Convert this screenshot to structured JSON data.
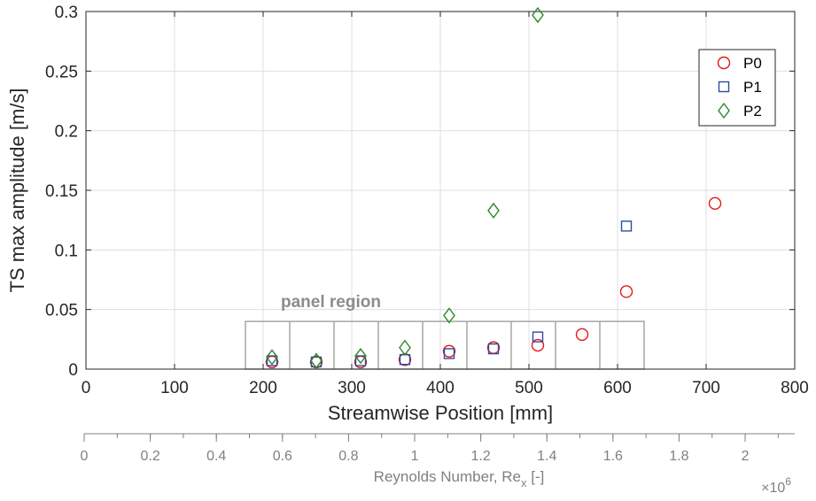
{
  "chart_data": {
    "type": "scatter",
    "xlabel": "Streamwise Position [mm]",
    "ylabel": "TS max amplitude [m/s]",
    "xlim": [
      0,
      800
    ],
    "ylim": [
      0,
      0.3
    ],
    "xticks": [
      0,
      100,
      200,
      300,
      400,
      500,
      600,
      700,
      800
    ],
    "yticks": [
      0,
      0.05,
      0.1,
      0.15,
      0.2,
      0.25,
      0.3
    ],
    "xtick_labels": [
      "0",
      "100",
      "200",
      "300",
      "400",
      "500",
      "600",
      "700",
      "800"
    ],
    "ytick_labels": [
      "0",
      "0.05",
      "0.1",
      "0.15",
      "0.2",
      "0.25",
      "0.3"
    ],
    "grid": true,
    "legend_position": "top-right",
    "series": [
      {
        "name": "P0",
        "marker": "circle",
        "color": "#e8141c",
        "points": [
          [
            210,
            0.006
          ],
          [
            260,
            0.006
          ],
          [
            310,
            0.006
          ],
          [
            360,
            0.008
          ],
          [
            410,
            0.015
          ],
          [
            460,
            0.018
          ],
          [
            510,
            0.02
          ],
          [
            560,
            0.029
          ],
          [
            610,
            0.065
          ],
          [
            710,
            0.139
          ]
        ]
      },
      {
        "name": "P1",
        "marker": "square",
        "color": "#2a4e9b",
        "points": [
          [
            210,
            0.007
          ],
          [
            260,
            0.006
          ],
          [
            310,
            0.007
          ],
          [
            360,
            0.008
          ],
          [
            410,
            0.013
          ],
          [
            460,
            0.017
          ],
          [
            510,
            0.027
          ],
          [
            610,
            0.12
          ]
        ]
      },
      {
        "name": "P2",
        "marker": "diamond",
        "color": "#2a8a2a",
        "points": [
          [
            210,
            0.01
          ],
          [
            260,
            0.007
          ],
          [
            310,
            0.011
          ],
          [
            360,
            0.018
          ],
          [
            410,
            0.045
          ],
          [
            460,
            0.133
          ],
          [
            510,
            0.297
          ]
        ]
      }
    ],
    "panel_region": {
      "label": "panel region",
      "x_start": 180,
      "x_end": 630,
      "panel_width": 50,
      "height": 0.04
    },
    "secondary_axis": {
      "label_main": "Reynolds Number, Re",
      "label_sub": "x",
      "label_suffix": " [-]",
      "multiplier_base": "×10",
      "multiplier_exp": "6",
      "xlim": [
        0,
        2.15
      ],
      "ticks": [
        0,
        0.2,
        0.4,
        0.6,
        0.8,
        1,
        1.2,
        1.4,
        1.6,
        1.8,
        2
      ],
      "tick_labels": [
        "0",
        "0.2",
        "0.4",
        "0.6",
        "0.8",
        "1",
        "1.2",
        "1.4",
        "1.6",
        "1.8",
        "2"
      ],
      "minor_step": 0.1
    }
  },
  "colors": {
    "axis": "#262626",
    "grid": "#dfdfdf",
    "panel_box": "#a6a6a6",
    "secondary_axis": "#808080"
  }
}
